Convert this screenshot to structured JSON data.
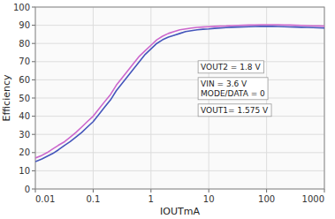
{
  "chart_data": {
    "type": "line",
    "title": "",
    "xlabel": "IOUTmA",
    "ylabel": "Efficiency",
    "log": "x",
    "grid": true,
    "xlim": [
      0.01,
      1000
    ],
    "ylim": [
      0,
      100
    ],
    "xticks": [
      0.01,
      0.1,
      1,
      10,
      100,
      1000
    ],
    "yticks": [
      0,
      10,
      20,
      30,
      40,
      50,
      60,
      70,
      80,
      90,
      100
    ],
    "annotations": [
      "VOUT2 = 1.8 V",
      "VIN = 3.6 V\nMODE/DATA = 0",
      "VOUT1= 1.575 V"
    ],
    "x": [
      0.01,
      0.013,
      0.016,
      0.02,
      0.025,
      0.032,
      0.04,
      0.05,
      0.063,
      0.079,
      0.1,
      0.126,
      0.158,
      0.2,
      0.251,
      0.316,
      0.398,
      0.501,
      0.631,
      0.794,
      1.0,
      1.26,
      1.585,
      2.0,
      2.51,
      3.16,
      3.98,
      5.01,
      6.31,
      7.94,
      10,
      12.6,
      15.8,
      20,
      25,
      31.6,
      39.8,
      50,
      63,
      79.4,
      100,
      126,
      158,
      200,
      251,
      316,
      400,
      500,
      631,
      794,
      1000
    ],
    "series": [
      {
        "color": "#cc66cc",
        "values": [
          17,
          18.5,
          20,
          22,
          24,
          26,
          28.5,
          31,
          34,
          37,
          40,
          44,
          48,
          52,
          57,
          61,
          65,
          69,
          73,
          76,
          79,
          82,
          84,
          85.5,
          86.5,
          87.5,
          88,
          88.5,
          88.8,
          89.0,
          89.2,
          89.4,
          89.5,
          89.6,
          89.8,
          89.9,
          90.0,
          90.1,
          90.2,
          90.3,
          90.3,
          90.3,
          90.3,
          90.2,
          90.1,
          90.0,
          89.9,
          89.8,
          89.7,
          89.6,
          89.5
        ]
      },
      {
        "color": "#4455bb",
        "values": [
          15,
          16.5,
          18,
          19.5,
          21.5,
          24,
          26,
          28.5,
          31,
          34,
          37,
          41,
          45,
          49,
          54,
          58,
          62,
          66,
          70,
          74,
          77,
          80,
          82,
          83.5,
          84.5,
          85.5,
          86.5,
          87.0,
          87.5,
          87.8,
          88.0,
          88.3,
          88.5,
          88.7,
          88.9,
          89.0,
          89.1,
          89.2,
          89.3,
          89.4,
          89.4,
          89.4,
          89.3,
          89.2,
          89.1,
          89.0,
          88.9,
          88.8,
          88.7,
          88.6,
          88.5
        ]
      }
    ]
  }
}
